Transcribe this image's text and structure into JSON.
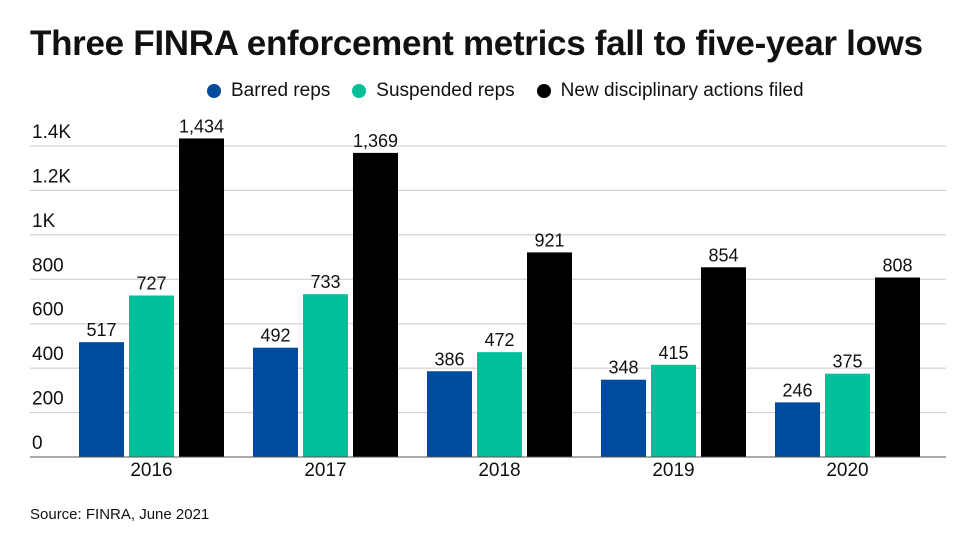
{
  "title": "Three FINRA enforcement metrics fall to five-year lows",
  "source": "Source: FINRA, June 2021",
  "colors": {
    "barred": "#004b9b",
    "suspended": "#00c09a",
    "new_actions": "#000000",
    "grid": "#c8c8c8",
    "axis": "#555555"
  },
  "legend": [
    {
      "label": "Barred reps",
      "color": "#004b9b"
    },
    {
      "label": "Suspended reps",
      "color": "#00c09a"
    },
    {
      "label": "New disciplinary actions filed",
      "color": "#000000"
    }
  ],
  "chart_data": {
    "type": "bar",
    "title": "Three FINRA enforcement metrics fall to five-year lows",
    "categories": [
      "2016",
      "2017",
      "2018",
      "2019",
      "2020"
    ],
    "series": [
      {
        "name": "Barred reps",
        "values": [
          517,
          492,
          386,
          348,
          246
        ],
        "labels": [
          "517",
          "492",
          "386",
          "348",
          "246"
        ],
        "color": "#004b9b"
      },
      {
        "name": "Suspended reps",
        "values": [
          727,
          733,
          472,
          415,
          375
        ],
        "labels": [
          "727",
          "733",
          "472",
          "415",
          "375"
        ],
        "color": "#00c09a"
      },
      {
        "name": "New disciplinary actions filed",
        "values": [
          1434,
          1369,
          921,
          854,
          808
        ],
        "labels": [
          "1,434",
          "1,369",
          "921",
          "854",
          "808"
        ],
        "color": "#000000"
      }
    ],
    "y_ticks": [
      {
        "value": 0,
        "label": "0"
      },
      {
        "value": 200,
        "label": "200"
      },
      {
        "value": 400,
        "label": "400"
      },
      {
        "value": 600,
        "label": "600"
      },
      {
        "value": 800,
        "label": "800"
      },
      {
        "value": 1000,
        "label": "1K"
      },
      {
        "value": 1200,
        "label": "1.2K"
      },
      {
        "value": 1400,
        "label": "1.4K"
      }
    ],
    "ylim": [
      0,
      1400
    ],
    "xlabel": "",
    "ylabel": "",
    "grid": true,
    "legend_position": "top-center"
  }
}
